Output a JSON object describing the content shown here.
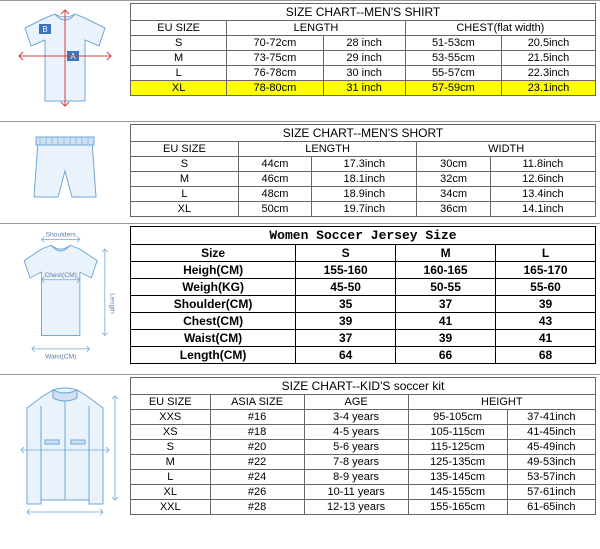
{
  "shirt": {
    "title": "SIZE CHART--MEN'S SHIRT",
    "headers": [
      "EU SIZE",
      "LENGTH",
      "",
      "CHEST(flat width)",
      ""
    ],
    "rows": [
      [
        "S",
        "70-72cm",
        "28 inch",
        "51-53cm",
        "20.5inch"
      ],
      [
        "M",
        "73-75cm",
        "29 inch",
        "53-55cm",
        "21.5inch"
      ],
      [
        "L",
        "76-78cm",
        "30 inch",
        "55-57cm",
        "22.3inch"
      ],
      [
        "XL",
        "78-80cm",
        "31 inch",
        "57-59cm",
        "23.1inch"
      ]
    ],
    "highlight_row": 3,
    "colors": {
      "highlight": "#ffff00",
      "stroke": "#6fa8d8",
      "label_fill": "#3b74b8"
    }
  },
  "short": {
    "title": "SIZE CHART--MEN'S SHORT",
    "headers": [
      "EU SIZE",
      "LENGTH",
      "",
      "WIDTH",
      ""
    ],
    "rows": [
      [
        "S",
        "44cm",
        "17.3inch",
        "30cm",
        "11.8inch"
      ],
      [
        "M",
        "46cm",
        "18.1inch",
        "32cm",
        "12.6inch"
      ],
      [
        "L",
        "48cm",
        "18.9inch",
        "34cm",
        "13.4inch"
      ],
      [
        "XL",
        "50cm",
        "19.7inch",
        "36cm",
        "14.1inch"
      ]
    ]
  },
  "women": {
    "title": "Women Soccer Jersey Size",
    "headers": [
      "Size",
      "S",
      "M",
      "L"
    ],
    "rows": [
      [
        "Heigh(CM)",
        "155-160",
        "160-165",
        "165-170"
      ],
      [
        "Weigh(KG)",
        "45-50",
        "50-55",
        "55-60"
      ],
      [
        "Shoulder(CM)",
        "35",
        "37",
        "39"
      ],
      [
        "Chest(CM)",
        "39",
        "41",
        "43"
      ],
      [
        "Waist(CM)",
        "37",
        "39",
        "41"
      ],
      [
        "Length(CM)",
        "64",
        "66",
        "68"
      ]
    ],
    "diag_labels": {
      "shoulders": "Shoulders",
      "chest": "Chest(CM)",
      "length": "Length",
      "waist": "Waist(CM)"
    }
  },
  "kid": {
    "title": "SIZE CHART--KID'S soccer kit",
    "headers": [
      "EU SIZE",
      "ASIA SIZE",
      "AGE",
      "HEIGHT",
      ""
    ],
    "rows": [
      [
        "XXS",
        "#16",
        "3-4 years",
        "95-105cm",
        "37-41inch"
      ],
      [
        "XS",
        "#18",
        "4-5 years",
        "105-115cm",
        "41-45inch"
      ],
      [
        "S",
        "#20",
        "5-6 years",
        "115-125cm",
        "45-49inch"
      ],
      [
        "M",
        "#22",
        "7-8 years",
        "125-135cm",
        "49-53inch"
      ],
      [
        "L",
        "#24",
        "8-9 years",
        "135-145cm",
        "53-57inch"
      ],
      [
        "XL",
        "#26",
        "10-11 years",
        "145-155cm",
        "57-61inch"
      ],
      [
        "XXL",
        "#28",
        "12-13 years",
        "155-165cm",
        "61-65inch"
      ]
    ]
  },
  "svg": {
    "stroke": "#6fa8d8",
    "fill": "#eaf2fb"
  }
}
